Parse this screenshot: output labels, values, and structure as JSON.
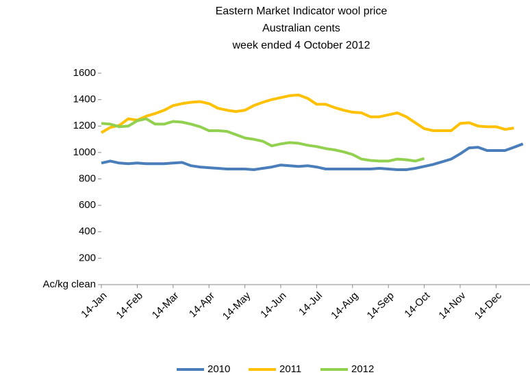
{
  "chart_data": {
    "type": "line",
    "title": "Eastern Market Indicator wool price",
    "subtitle": [
      "Australian cents",
      "week ended 4 October 2012"
    ],
    "categories": [
      "14-Jan",
      null,
      null,
      null,
      "14-Feb",
      null,
      null,
      null,
      "14-Mar",
      null,
      null,
      null,
      "14-Apr",
      null,
      null,
      null,
      "14-May",
      null,
      null,
      null,
      "14-Jun",
      null,
      null,
      null,
      "14-Jul",
      null,
      null,
      null,
      "14-Aug",
      null,
      null,
      null,
      "14-Sep",
      null,
      null,
      null,
      "14-Oct",
      null,
      null,
      null,
      "14-Nov",
      null,
      null,
      null,
      "14-Dec",
      null,
      null,
      null
    ],
    "series": [
      {
        "name": "2010",
        "color": "#4a7ebb",
        "values": [
          920,
          935,
          920,
          915,
          920,
          915,
          915,
          915,
          920,
          925,
          900,
          890,
          885,
          880,
          875,
          875,
          875,
          870,
          880,
          890,
          905,
          900,
          895,
          900,
          890,
          875,
          875,
          875,
          875,
          875,
          875,
          880,
          875,
          870,
          870,
          880,
          895,
          910,
          930,
          950,
          990,
          1035,
          1040,
          1015,
          1015,
          1015,
          1040,
          1065
        ]
      },
      {
        "name": "2011",
        "color": "#ffc000",
        "values": [
          1150,
          1190,
          1205,
          1255,
          1245,
          1275,
          1295,
          1320,
          1355,
          1370,
          1380,
          1385,
          1370,
          1335,
          1320,
          1310,
          1320,
          1355,
          1380,
          1400,
          1415,
          1430,
          1435,
          1410,
          1365,
          1365,
          1340,
          1320,
          1305,
          1300,
          1270,
          1270,
          1285,
          1300,
          1270,
          1225,
          1180,
          1165,
          1165,
          1165,
          1220,
          1225,
          1200,
          1195,
          1195,
          1175,
          1185,
          null
        ]
      },
      {
        "name": "2012",
        "color": "#92d050",
        "values": [
          1220,
          1215,
          1195,
          1200,
          1240,
          1255,
          1215,
          1215,
          1235,
          1230,
          1215,
          1195,
          1165,
          1165,
          1160,
          1135,
          1110,
          1100,
          1085,
          1050,
          1065,
          1075,
          1070,
          1055,
          1045,
          1030,
          1020,
          1005,
          985,
          950,
          940,
          935,
          935,
          950,
          945,
          935,
          955,
          null,
          null,
          null,
          null,
          null,
          null,
          null,
          null,
          null,
          null,
          null
        ]
      }
    ],
    "ylim": [
      0,
      1600
    ],
    "yticks": [
      {
        "value": 0,
        "label": "Ac/kg clean"
      },
      200,
      400,
      600,
      800,
      1000,
      1200,
      1400,
      1600
    ],
    "grid": false,
    "legend": "bottom"
  }
}
